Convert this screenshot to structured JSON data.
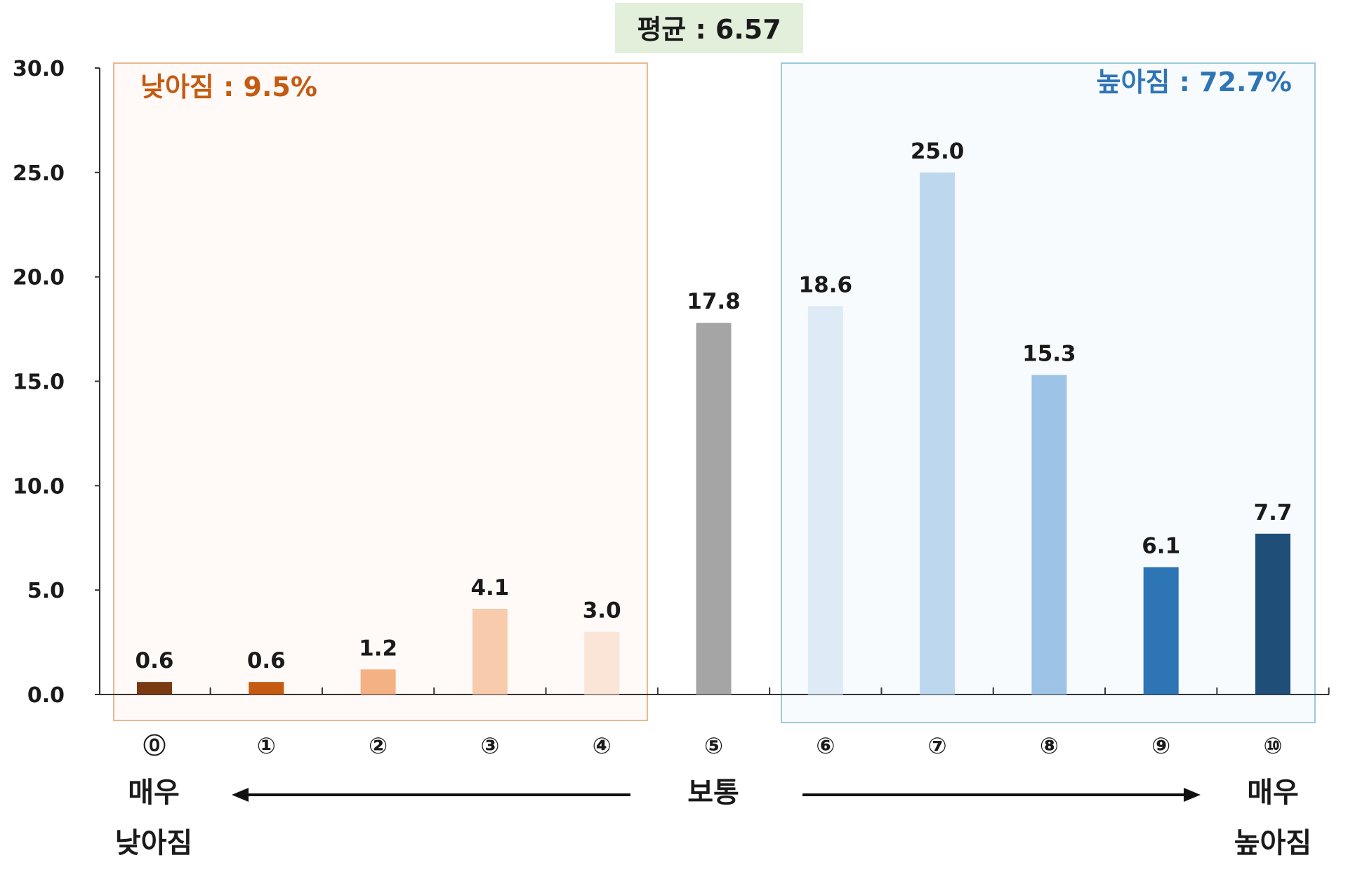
{
  "chart_data": {
    "type": "bar",
    "categories": [
      "⓪",
      "①",
      "②",
      "③",
      "④",
      "⑤",
      "⑥",
      "⑦",
      "⑧",
      "⑨",
      "⑩"
    ],
    "values": [
      0.6,
      0.6,
      1.2,
      4.1,
      3.0,
      17.8,
      18.6,
      25.0,
      15.3,
      6.1,
      7.7
    ],
    "value_labels": [
      "0.6",
      "0.6",
      "1.2",
      "4.1",
      "3.0",
      "17.8",
      "18.6",
      "25.0",
      "15.3",
      "6.1",
      "7.7"
    ],
    "bar_colors": [
      "#7a3a12",
      "#c55a11",
      "#f4b183",
      "#f8cbad",
      "#fbe5d6",
      "#a5a5a5",
      "#deebf7",
      "#bdd7ee",
      "#9dc3e6",
      "#2e75b6",
      "#1f4e79"
    ],
    "ylim": [
      0,
      30
    ],
    "y_ticks": [
      "0.0",
      "5.0",
      "10.0",
      "15.0",
      "20.0",
      "25.0",
      "30.0"
    ],
    "y_tick_values": [
      0,
      5,
      10,
      15,
      20,
      25,
      30
    ],
    "xlabel": "",
    "ylabel": "",
    "grid": false,
    "mean_label": "평균 : 6.57",
    "lower_group": {
      "label": "낮아짐 : 9.5%",
      "color": "#c55a11",
      "border_color": "#e8b98e",
      "fill_color": "#fffaf7"
    },
    "higher_group": {
      "label": "높아짐 : 72.7%",
      "color": "#2e75b6",
      "border_color": "#9cc9dc",
      "fill_color": "#f8fbfe"
    },
    "scale_labels": {
      "left_line1": "매우",
      "left_line2": "낮아짐",
      "center": "보통",
      "right_line1": "매우",
      "right_line2": "높아짐"
    }
  }
}
